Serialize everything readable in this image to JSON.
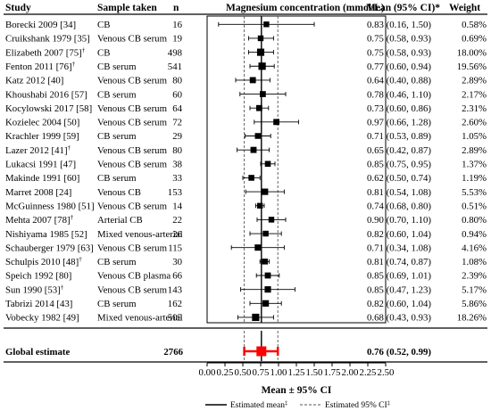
{
  "headers": {
    "study": "Study",
    "sample": "Sample taken",
    "n": "n",
    "plot": "Magnesium concentration (mmol/L)",
    "mean_ci": "Mean (95% CI)*",
    "weight": "Weight"
  },
  "chart_data": {
    "type": "forest",
    "xlabel": "Mean ± 95% CI",
    "xlim": [
      0,
      2.5
    ],
    "xticks": [
      "0.00",
      "0.25",
      "0.50",
      "0.75",
      "1.00",
      "1.25",
      "1.50",
      "1.75",
      "2.00",
      "2.25",
      "2.50"
    ],
    "studies": [
      {
        "study": "Borecki 2009 [34]",
        "sup": "",
        "sample": "CB",
        "n": "16",
        "mean": 0.83,
        "lo": 0.16,
        "hi": 1.5,
        "ci_text": "0.83 (0.16, 1.50)",
        "weight_text": "0.58%",
        "weight": 0.58
      },
      {
        "study": "Cruikshank 1979 [35]",
        "sup": "",
        "sample": "Venous CB serum",
        "n": "19",
        "mean": 0.75,
        "lo": 0.58,
        "hi": 0.93,
        "ci_text": "0.75 (0.58, 0.93)",
        "weight_text": "0.69%",
        "weight": 0.69
      },
      {
        "study": "Elizabeth 2007 [75]",
        "sup": "†",
        "sample": "CB",
        "n": "498",
        "mean": 0.75,
        "lo": 0.58,
        "hi": 0.93,
        "ci_text": "0.75 (0.58, 0.93)",
        "weight_text": "18.00%",
        "weight": 18.0
      },
      {
        "study": "Fenton 2011 [76]",
        "sup": "†",
        "sample": "CB serum",
        "n": "541",
        "mean": 0.77,
        "lo": 0.6,
        "hi": 0.94,
        "ci_text": "0.77 (0.60, 0.94)",
        "weight_text": "19.56%",
        "weight": 19.56
      },
      {
        "study": "Katz 2012 [40]",
        "sup": "",
        "sample": "Venous CB serum",
        "n": "80",
        "mean": 0.64,
        "lo": 0.4,
        "hi": 0.88,
        "ci_text": "0.64 (0.40, 0.88)",
        "weight_text": "2.89%",
        "weight": 2.89
      },
      {
        "study": "Khoushabi 2016 [57]",
        "sup": "",
        "sample": "CB serum",
        "n": "60",
        "mean": 0.78,
        "lo": 0.46,
        "hi": 1.1,
        "ci_text": "0.78 (0.46, 1.10)",
        "weight_text": "2.17%",
        "weight": 2.17
      },
      {
        "study": "Kocylowski 2017 [58]",
        "sup": "",
        "sample": "Venous CB serum",
        "n": "64",
        "mean": 0.73,
        "lo": 0.6,
        "hi": 0.86,
        "ci_text": "0.73 (0.60, 0.86)",
        "weight_text": "2.31%",
        "weight": 2.31
      },
      {
        "study": "Kozielec 2004 [50]",
        "sup": "",
        "sample": "Venous CB serum",
        "n": "72",
        "mean": 0.97,
        "lo": 0.66,
        "hi": 1.28,
        "ci_text": "0.97 (0.66, 1.28)",
        "weight_text": "2.60%",
        "weight": 2.6
      },
      {
        "study": "Krachler 1999 [59]",
        "sup": "",
        "sample": "CB serum",
        "n": "29",
        "mean": 0.71,
        "lo": 0.53,
        "hi": 0.89,
        "ci_text": "0.71 (0.53, 0.89)",
        "weight_text": "1.05%",
        "weight": 1.05
      },
      {
        "study": "Lazer 2012 [41]",
        "sup": "†",
        "sample": "Venous CB serum",
        "n": "80",
        "mean": 0.65,
        "lo": 0.42,
        "hi": 0.87,
        "ci_text": "0.65 (0.42, 0.87)",
        "weight_text": "2.89%",
        "weight": 2.89
      },
      {
        "study": "Lukacsi 1991 [47]",
        "sup": "",
        "sample": "Venous CB serum",
        "n": "38",
        "mean": 0.85,
        "lo": 0.75,
        "hi": 0.95,
        "ci_text": "0.85 (0.75, 0.95)",
        "weight_text": "1.37%",
        "weight": 1.37
      },
      {
        "study": "Makinde 1991 [60]",
        "sup": "",
        "sample": "CB serum",
        "n": "33",
        "mean": 0.62,
        "lo": 0.5,
        "hi": 0.74,
        "ci_text": "0.62 (0.50, 0.74)",
        "weight_text": "1.19%",
        "weight": 1.19
      },
      {
        "study": "Marret 2008 [24]",
        "sup": "",
        "sample": "Venous CB",
        "n": "153",
        "mean": 0.81,
        "lo": 0.54,
        "hi": 1.08,
        "ci_text": "0.81 (0.54, 1.08)",
        "weight_text": "5.53%",
        "weight": 5.53
      },
      {
        "study": "McGuinness 1980 [51]",
        "sup": "",
        "sample": "Venous CB serum",
        "n": "14",
        "mean": 0.74,
        "lo": 0.68,
        "hi": 0.8,
        "ci_text": "0.74 (0.68, 0.80)",
        "weight_text": "0.51%",
        "weight": 0.51
      },
      {
        "study": "Mehta 2007 [78]",
        "sup": "†",
        "sample": "Arterial CB",
        "n": "22",
        "mean": 0.9,
        "lo": 0.7,
        "hi": 1.1,
        "ci_text": "0.90 (0.70, 1.10)",
        "weight_text": "0.80%",
        "weight": 0.8
      },
      {
        "study": "Nishiyama 1985 [52]",
        "sup": "",
        "sample": "Mixed venous-arterial",
        "n": "26",
        "mean": 0.82,
        "lo": 0.6,
        "hi": 1.04,
        "ci_text": "0.82 (0.60, 1.04)",
        "weight_text": "0.94%",
        "weight": 0.94
      },
      {
        "study": "Schauberger 1979 [63]",
        "sup": "",
        "sample": "Venous CB serum",
        "n": "115",
        "mean": 0.71,
        "lo": 0.34,
        "hi": 1.08,
        "ci_text": "0.71 (0.34, 1.08)",
        "weight_text": "4.16%",
        "weight": 4.16
      },
      {
        "study": "Schulpis 2010 [48]",
        "sup": "†",
        "sample": "CB serum",
        "n": "30",
        "mean": 0.81,
        "lo": 0.74,
        "hi": 0.87,
        "ci_text": "0.81 (0.74, 0.87)",
        "weight_text": "1.08%",
        "weight": 1.08
      },
      {
        "study": "Speich 1992 [80]",
        "sup": "",
        "sample": "Venous CB plasma",
        "n": "66",
        "mean": 0.85,
        "lo": 0.69,
        "hi": 1.01,
        "ci_text": "0.85 (0.69, 1.01)",
        "weight_text": "2.39%",
        "weight": 2.39
      },
      {
        "study": "Sun 1990 [53]",
        "sup": "†",
        "sample": "Venous CB serum",
        "n": "143",
        "mean": 0.85,
        "lo": 0.47,
        "hi": 1.23,
        "ci_text": "0.85 (0.47, 1.23)",
        "weight_text": "5.17%",
        "weight": 5.17
      },
      {
        "study": "Tabrizi 2014 [43]",
        "sup": "",
        "sample": "CB serum",
        "n": "162",
        "mean": 0.82,
        "lo": 0.6,
        "hi": 1.04,
        "ci_text": "0.82 (0.60, 1.04)",
        "weight_text": "5.86%",
        "weight": 5.86
      },
      {
        "study": "Vobecky 1982 [49]",
        "sup": "",
        "sample": "Mixed venous-arterial",
        "n": "505",
        "mean": 0.68,
        "lo": 0.43,
        "hi": 0.93,
        "ci_text": "0.68 (0.43, 0.93)",
        "weight_text": "18.26%",
        "weight": 18.26
      }
    ],
    "global": {
      "label": "Global estimate",
      "n": "2766",
      "mean": 0.76,
      "lo": 0.52,
      "hi": 0.99,
      "ci_text": "0.76 (0.52, 0.99)"
    },
    "legend": {
      "mean_label": "Estimated mean",
      "mean_sup": "‡",
      "ci_label": "Estimated 95% CI",
      "ci_sup": "‡"
    }
  },
  "colors": {
    "marker": "#000000",
    "global_marker": "#ff0000",
    "line": "#000000",
    "dashed": "#555555"
  }
}
